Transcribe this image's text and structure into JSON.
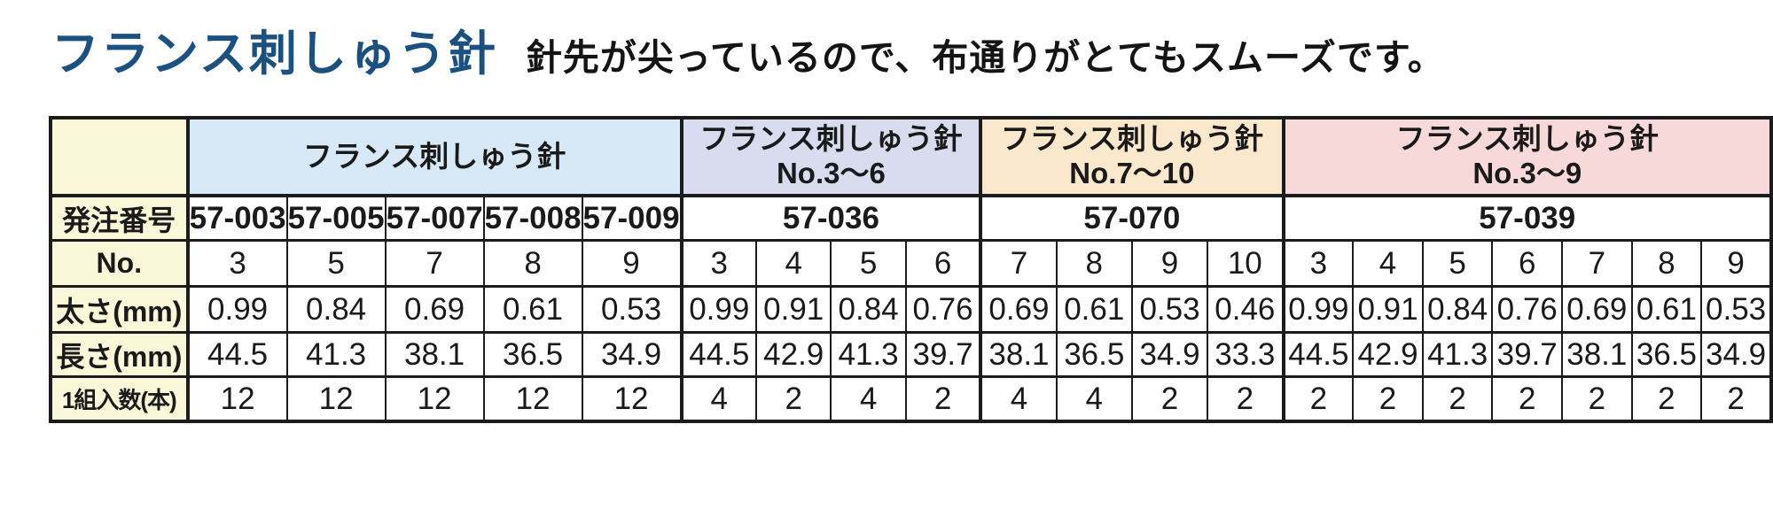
{
  "page": {
    "title": "フランス刺しゅう針",
    "subtitle": "針先が尖っているので、布通りがとてもスムーズです。"
  },
  "colors": {
    "title_color": "#1b5181",
    "label_bg": "#fbf8d9",
    "group_blue": "#d7e9f7",
    "group_lavender": "#d8dcee",
    "group_peach": "#fae8cc",
    "group_pink": "#f8d9da"
  },
  "table": {
    "row_labels": {
      "order_number": "発注番号",
      "no": "No.",
      "thickness": "太さ(mm)",
      "length": "長さ(mm)",
      "qty": "1組入数(本)"
    },
    "groups": [
      {
        "title": "フランス刺しゅう針",
        "subtitle": "",
        "bg": "#d7e9f7",
        "order_numbers": [
          "57-003",
          "57-005",
          "57-007",
          "57-008",
          "57-009"
        ],
        "no": [
          "3",
          "5",
          "7",
          "8",
          "9"
        ],
        "thickness": [
          "0.99",
          "0.84",
          "0.69",
          "0.61",
          "0.53"
        ],
        "length": [
          "44.5",
          "41.3",
          "38.1",
          "36.5",
          "34.9"
        ],
        "qty": [
          "12",
          "12",
          "12",
          "12",
          "12"
        ]
      },
      {
        "title": "フランス刺しゅう針",
        "subtitle": "No.3～6",
        "bg": "#d8dcee",
        "order_number": "57-036",
        "no": [
          "3",
          "4",
          "5",
          "6"
        ],
        "thickness": [
          "0.99",
          "0.91",
          "0.84",
          "0.76"
        ],
        "length": [
          "44.5",
          "42.9",
          "41.3",
          "39.7"
        ],
        "qty": [
          "4",
          "2",
          "4",
          "2"
        ]
      },
      {
        "title": "フランス刺しゅう針",
        "subtitle": "No.7～10",
        "bg": "#fae8cc",
        "order_number": "57-070",
        "no": [
          "7",
          "8",
          "9",
          "10"
        ],
        "thickness": [
          "0.69",
          "0.61",
          "0.53",
          "0.46"
        ],
        "length": [
          "38.1",
          "36.5",
          "34.9",
          "33.3"
        ],
        "qty": [
          "4",
          "4",
          "2",
          "2"
        ]
      },
      {
        "title": "フランス刺しゅう針",
        "subtitle": "No.3～9",
        "bg": "#f8d9da",
        "order_number": "57-039",
        "no": [
          "3",
          "4",
          "5",
          "6",
          "7",
          "8",
          "9"
        ],
        "thickness": [
          "0.99",
          "0.91",
          "0.84",
          "0.76",
          "0.69",
          "0.61",
          "0.53"
        ],
        "length": [
          "44.5",
          "42.9",
          "41.3",
          "39.7",
          "38.1",
          "36.5",
          "34.9"
        ],
        "qty": [
          "2",
          "2",
          "2",
          "2",
          "2",
          "2",
          "2"
        ]
      }
    ]
  }
}
